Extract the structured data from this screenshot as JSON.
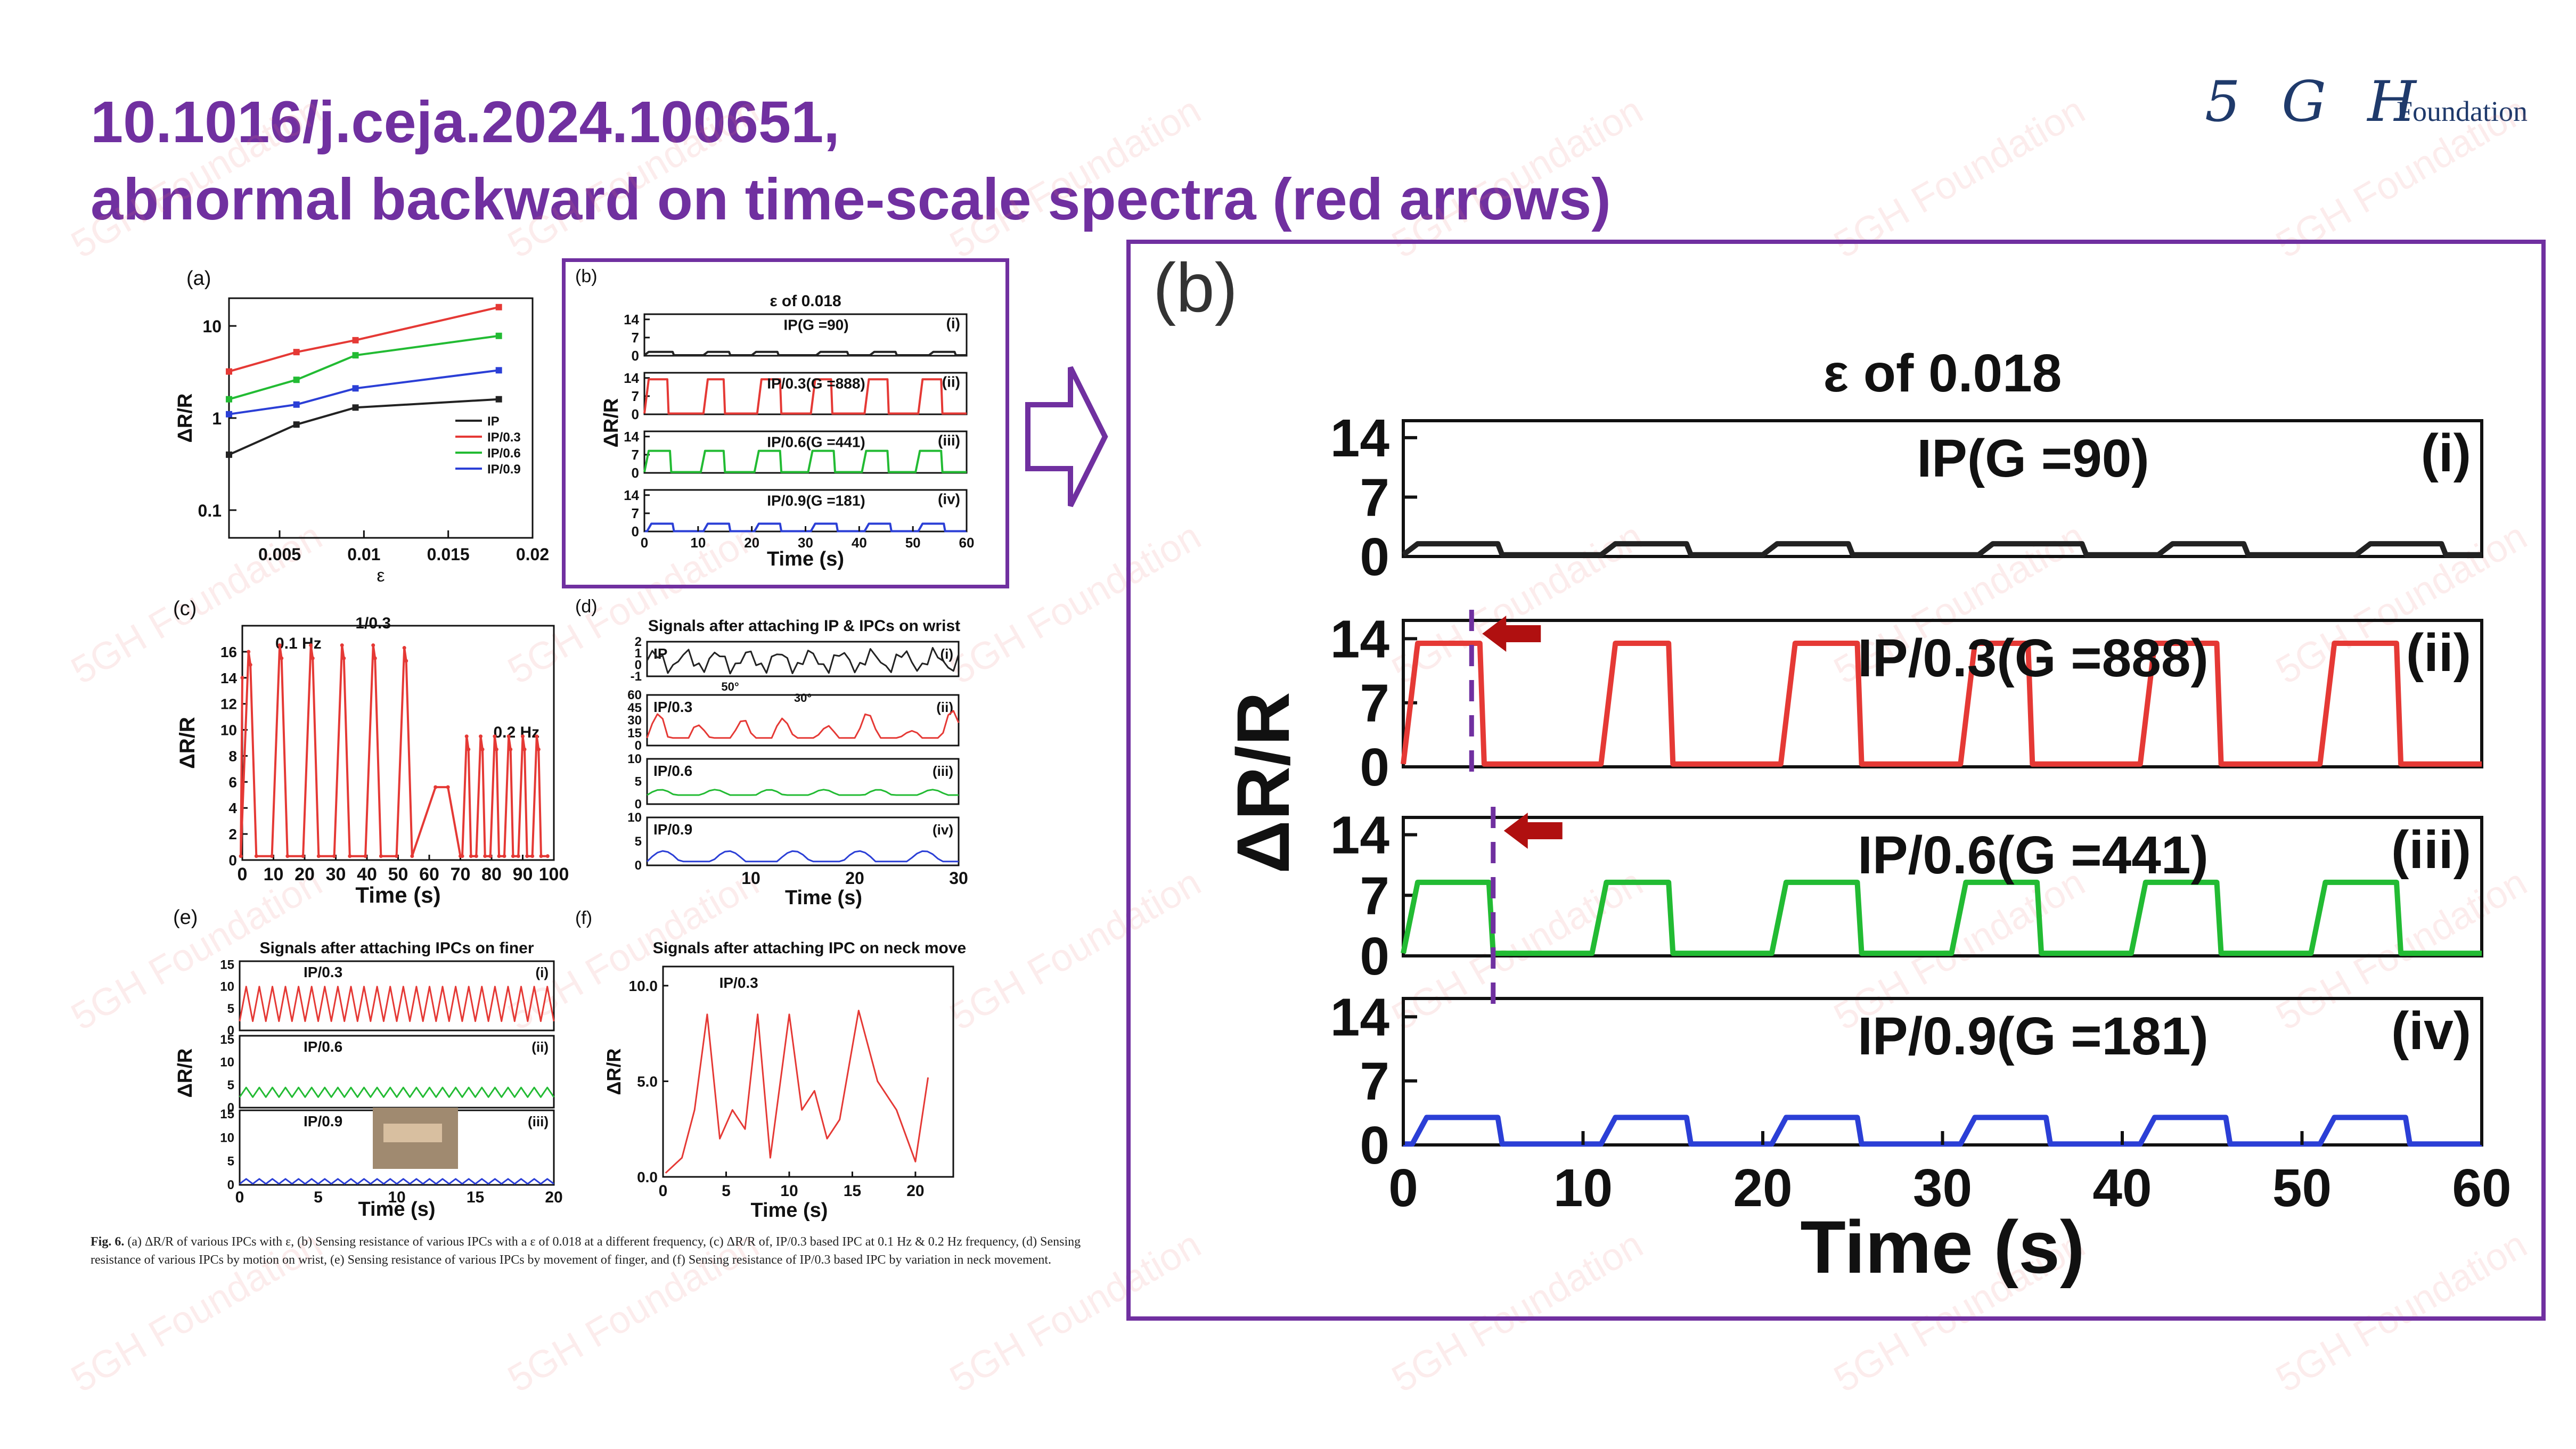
{
  "slide": {
    "title_line1": "10.1016/j.ceja.2024.100651,",
    "title_line2": "abnormal backward on time-scale spectra (red arrows)",
    "logo_mark": "5 G H",
    "logo_word": "Foundation",
    "watermark": "5GH Foundation",
    "accent_color": "#7030a0",
    "caption_label": "Fig. 6.",
    "caption_text": "(a) ΔR/R of various IPCs with ε, (b) Sensing resistance of various IPCs with a ε of 0.018 at a different frequency, (c) ΔR/R of, IP/0.3 based IPC at 0.1 Hz & 0.2 Hz frequency, (d) Sensing resistance of various IPCs by motion on wrist, (e) Sensing resistance of various IPCs by movement of finger, and (f) Sensing resistance of IP/0.3 based IPC by variation in neck movement."
  },
  "chart_data": [
    {
      "panel": "(a)",
      "type": "line",
      "xlabel": "ε",
      "ylabel": "ΔR/R",
      "log_y": true,
      "xlim": [
        0.002,
        0.02
      ],
      "ylim": [
        0.05,
        20
      ],
      "xticks": [
        "0.005",
        "0.01",
        "0.015",
        "0.02"
      ],
      "yticks": [
        "0.1",
        "1",
        "10"
      ],
      "legend_position": "lower-right",
      "x": [
        0.002,
        0.006,
        0.0095,
        0.018
      ],
      "series": [
        {
          "name": "IP",
          "color": "#222222",
          "values": [
            0.4,
            0.85,
            1.3,
            1.6
          ]
        },
        {
          "name": "IP/0.3",
          "color": "#e53935",
          "values": [
            3.2,
            5.2,
            7.0,
            16.0
          ]
        },
        {
          "name": "IP/0.6",
          "color": "#22bb33",
          "values": [
            1.6,
            2.6,
            4.8,
            7.8
          ]
        },
        {
          "name": "IP/0.9",
          "color": "#2b3fd6",
          "values": [
            1.1,
            1.4,
            2.1,
            3.3
          ]
        }
      ]
    },
    {
      "panel": "(b)",
      "type": "line",
      "title": "ε of 0.018",
      "xlabel": "Time (s)",
      "ylabel": "ΔR/R",
      "xlim": [
        0,
        60
      ],
      "xticks": [
        "0",
        "10",
        "20",
        "30",
        "40",
        "50",
        "60"
      ],
      "yticks": [
        "0",
        "7",
        "14"
      ],
      "ylim": [
        0,
        16
      ],
      "subplots": [
        {
          "label": "IP(G =90)",
          "roman": "(i)",
          "color": "#222222",
          "pulses": [
            0,
            5.5,
            11,
            16,
            20,
            25,
            32,
            38,
            42,
            47,
            53,
            58
          ],
          "high": 1.5,
          "low": 0.2
        },
        {
          "label": "IP/0.3(G =888)",
          "roman": "(ii)",
          "color": "#e53935",
          "pulses": [
            0,
            4.5,
            11,
            15,
            21,
            25.5,
            31,
            35,
            41,
            45.5,
            51,
            55.5
          ],
          "high": 13.5,
          "low": 0.3
        },
        {
          "label": "IP/0.6(G =441)",
          "roman": "(iii)",
          "color": "#22bb33",
          "pulses": [
            0,
            5,
            10.5,
            15,
            20.5,
            25.5,
            30.5,
            35.5,
            40.5,
            45.5,
            50.5,
            55.5
          ],
          "high": 8.5,
          "low": 0.3
        },
        {
          "label": "IP/0.9(G =181)",
          "roman": "(iv)",
          "color": "#2b3fd6",
          "pulses": [
            0.5,
            5.5,
            11,
            16,
            20.5,
            25.5,
            31,
            36,
            41,
            46,
            51,
            56
          ],
          "high": 3.0,
          "low": 0.1
        }
      ]
    },
    {
      "panel": "(c)",
      "type": "line",
      "title": "1/0.3",
      "xlabel": "Time (s)",
      "ylabel": "ΔR/R",
      "xlim": [
        0,
        100
      ],
      "ylim": [
        0,
        18
      ],
      "xticks": [
        "0",
        "10",
        "20",
        "30",
        "40",
        "50",
        "60",
        "70",
        "80",
        "90",
        "100"
      ],
      "yticks": [
        "0",
        "2",
        "4",
        "6",
        "8",
        "10",
        "12",
        "14",
        "16"
      ],
      "annotations": [
        "0.1 Hz",
        "0.2 Hz"
      ],
      "peaks_x": [
        2,
        12,
        22,
        32,
        42,
        52,
        72,
        76.5,
        81,
        85.5,
        90,
        94.5
      ],
      "peaks_y": [
        16,
        16.5,
        16.5,
        16.5,
        16.5,
        16.3,
        9.5,
        9.5,
        9.5,
        9.5,
        9.5,
        9.5
      ],
      "color": "#e53935"
    },
    {
      "panel": "(d)",
      "type": "line",
      "title": "Signals after attaching IP & IPCs on wrist",
      "xlabel": "Time (s)",
      "xlim": [
        0,
        30
      ],
      "xticks": [
        "10",
        "20",
        "30"
      ],
      "annotations": [
        "50°",
        "30°"
      ],
      "subplots": [
        {
          "label": "IP",
          "roman": "(i)",
          "color": "#222222",
          "yticks": [
            "-1",
            "0",
            "1",
            "2"
          ]
        },
        {
          "label": "IP/0.3",
          "roman": "(ii)",
          "color": "#e53935",
          "yticks": [
            "0",
            "15",
            "30",
            "45",
            "60"
          ]
        },
        {
          "label": "IP/0.6",
          "roman": "(iii)",
          "color": "#22bb33",
          "yticks": [
            "0",
            "5",
            "10"
          ]
        },
        {
          "label": "IP/0.9",
          "roman": "(iv)",
          "color": "#2b3fd6",
          "yticks": [
            "0",
            "5",
            "10"
          ]
        }
      ]
    },
    {
      "panel": "(e)",
      "type": "line",
      "title": "Signals after attaching IPCs on finer",
      "xlabel": "Time (s)",
      "ylabel": "ΔR/R",
      "xlim": [
        0,
        20
      ],
      "xticks": [
        "0",
        "5",
        "10",
        "15",
        "20"
      ],
      "yticks": [
        "0",
        "5",
        "10",
        "15"
      ],
      "subplots": [
        {
          "label": "IP/0.3",
          "roman": "(i)",
          "color": "#e53935",
          "high": 9.5,
          "low": 2,
          "cycles": 24
        },
        {
          "label": "IP/0.6",
          "roman": "(ii)",
          "color": "#22bb33",
          "high": 4.2,
          "low": 2.2,
          "cycles": 24
        },
        {
          "label": "IP/0.9",
          "roman": "(iii)",
          "color": "#2b3fd6",
          "high": 1.2,
          "low": 0.2,
          "cycles": 24
        }
      ]
    },
    {
      "panel": "(f)",
      "type": "line",
      "title": "Signals after attaching IPC on neck move",
      "xlabel": "Time (s)",
      "ylabel": "ΔR/R",
      "label": "IP/0.3",
      "xlim": [
        0,
        23
      ],
      "ylim": [
        0,
        11
      ],
      "xticks": [
        "0",
        "5",
        "10",
        "15",
        "20"
      ],
      "yticks": [
        "0.0",
        "5.0",
        "10.0"
      ],
      "color": "#e53935",
      "x": [
        0.2,
        1.5,
        2.5,
        3.5,
        4.5,
        5.5,
        6.5,
        7.5,
        8.5,
        10,
        11,
        12,
        13,
        14,
        15.5,
        17,
        18.5,
        20,
        21
      ],
      "y": [
        0.2,
        1.0,
        3.5,
        8.5,
        2.0,
        3.5,
        2.5,
        8.5,
        1.0,
        8.5,
        3.5,
        4.5,
        2.0,
        3.0,
        8.7,
        5.0,
        3.5,
        0.8,
        5.2
      ]
    }
  ],
  "zoom_panel": {
    "label": "(b)",
    "title": "ε of 0.018",
    "xlabel": "Time (s)",
    "ylabel": "ΔR/R",
    "xticks": [
      "0",
      "10",
      "20",
      "30",
      "40",
      "50",
      "60"
    ],
    "yticks": [
      "0",
      "7",
      "14"
    ],
    "arrow_color": "#b01010",
    "arrow_marks": [
      {
        "subplot": "(ii)",
        "t": 3.8
      },
      {
        "subplot": "(iii)",
        "t": 5.0
      }
    ],
    "frame_color": "#7030a0"
  },
  "figure_labels": {
    "b_small": "(b)"
  }
}
